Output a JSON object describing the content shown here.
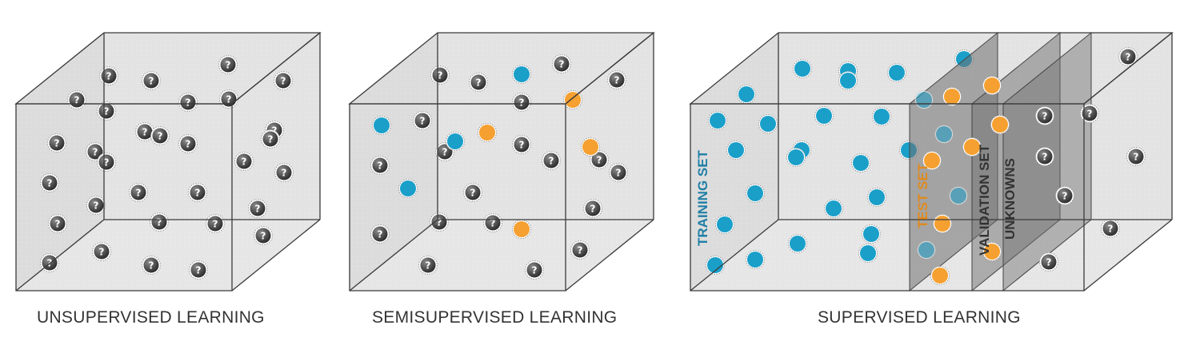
{
  "panels": [
    {
      "caption": "UNSUPERVISED LEARNING",
      "points": []
    },
    {
      "caption": "SEMISUPERVISED LEARNING",
      "points": []
    },
    {
      "caption": "SUPERVISED LEARNING",
      "set_labels": {
        "training": "TRAINING SET",
        "test": "TEST SET",
        "validation": "VALIDATION SET",
        "unknowns": "UNKNOWNS"
      }
    }
  ],
  "glyph": "?",
  "colors": {
    "labeled_blue": "#1a9fc9",
    "labeled_orange": "#f5a030",
    "unknown_dark": "#555555",
    "box_fill": "#e3e3e3",
    "box_edge": "#3a3a3a",
    "training_label": "#1f7fa6",
    "test_label": "#e08a1e",
    "validation_label": "#333333",
    "unknowns_label": "#333333"
  }
}
